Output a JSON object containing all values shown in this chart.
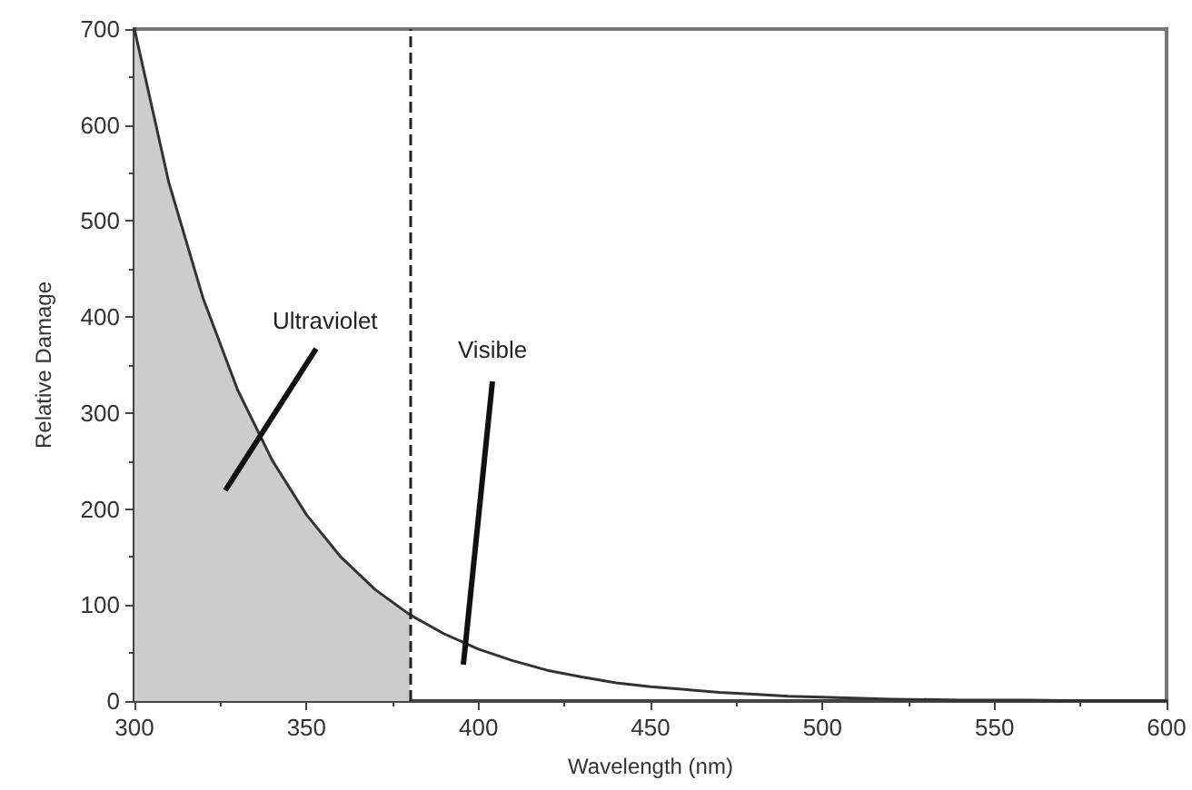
{
  "chart_data": {
    "type": "line",
    "xlabel": "Wavelength (nm)",
    "ylabel": "Relative Damage",
    "xlim": [
      300,
      600
    ],
    "xticks": [
      300,
      350,
      400,
      450,
      500,
      550,
      600
    ],
    "ylim": [
      0,
      700
    ],
    "yticks": [
      0,
      100,
      200,
      300,
      400,
      500,
      600,
      700
    ],
    "grid": false,
    "marker": "none",
    "line_style": "solid",
    "series": [
      {
        "type": "area",
        "color": "#cccccc",
        "x": [
          300,
          310,
          320,
          330,
          340,
          350,
          360,
          370,
          380
        ],
        "values": [
          700,
          540,
          419,
          324,
          251,
          194,
          150,
          116,
          90
        ]
      },
      {
        "color": "#333333",
        "x": [
          300,
          310,
          320,
          330,
          340,
          350,
          360,
          370,
          380,
          390,
          400,
          410,
          420,
          430,
          440,
          450,
          460,
          470,
          480,
          490,
          500,
          520,
          540,
          560,
          580,
          600
        ],
        "values": [
          700,
          540,
          419,
          324,
          251,
          194,
          150,
          116,
          90,
          70,
          54,
          42,
          32,
          25,
          19,
          15,
          12,
          9,
          7,
          5,
          4,
          2,
          1,
          1,
          0,
          0
        ]
      }
    ],
    "ref_lines": [
      {
        "axis": "x",
        "value": 380,
        "label": null,
        "color": "#222222",
        "line_style": "dashed"
      }
    ],
    "annotations": [
      "Ultraviolet",
      "Visible"
    ]
  }
}
